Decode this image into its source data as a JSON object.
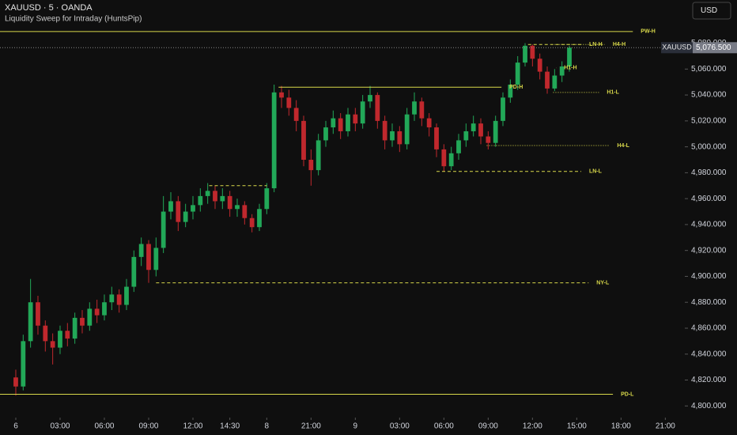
{
  "chart_data": {
    "type": "candlestick",
    "title": "XAUUSD · 5 · OANDA",
    "subtitle": "Liquidity Sweep for Intraday (HuntsPip)",
    "currency_button": "USD",
    "up_color": "#22a858",
    "down_color": "#c0282d",
    "x": [
      0,
      0.5,
      1,
      1.5,
      2,
      2.5,
      3,
      3.5,
      4,
      4.5,
      5,
      5.5,
      6,
      6.5,
      7,
      7.5,
      8,
      8.5,
      9,
      9.5,
      10,
      10.5,
      11,
      11.5,
      12,
      12.5,
      13,
      13.5,
      14,
      14.5,
      15,
      15.5,
      16,
      16.5,
      17,
      17.5,
      18,
      18.5,
      19,
      19.5,
      20,
      20.5,
      21,
      21.5,
      22,
      22.5,
      23,
      23.5,
      24,
      24.5,
      25,
      25.5,
      26,
      26.5,
      27,
      27.5,
      28,
      28.5,
      29,
      29.5,
      30,
      30.5,
      31,
      31.5,
      32,
      32.5,
      33,
      33.5,
      34,
      34.5,
      35,
      35.5,
      36,
      36.5,
      37,
      37.5
    ],
    "open": [
      4822,
      4815,
      4850,
      4880,
      4862,
      4850,
      4845,
      4858,
      4852,
      4868,
      4862,
      4875,
      4870,
      4880,
      4886,
      4878,
      4892,
      4915,
      4925,
      4905,
      4922,
      4950,
      4958,
      4942,
      4950,
      4955,
      4962,
      4966,
      4958,
      4962,
      4952,
      4955,
      4945,
      4938,
      4952,
      4968,
      5042,
      5038,
      5030,
      5020,
      4990,
      4982,
      5005,
      5015,
      5022,
      5012,
      5025,
      5018,
      5035,
      5040,
      5020,
      5005,
      5012,
      5002,
      5025,
      5035,
      5022,
      5015,
      4998,
      4985,
      4995,
      5005,
      5012,
      5018,
      5008,
      5003,
      5020,
      5038,
      5048,
      5065,
      5078,
      5068,
      5058,
      5045,
      5055,
      5062
    ],
    "high": [
      4828,
      4855,
      4898,
      4885,
      4866,
      4856,
      4862,
      4864,
      4872,
      4874,
      4880,
      4882,
      4886,
      4892,
      4890,
      4898,
      4920,
      4930,
      4928,
      4930,
      4962,
      4965,
      4962,
      4956,
      4962,
      4968,
      4972,
      4970,
      4968,
      4966,
      4960,
      4958,
      4948,
      4956,
      4972,
      5048,
      5047,
      5044,
      5036,
      5024,
      4998,
      5010,
      5020,
      5028,
      5026,
      5030,
      5030,
      5040,
      5047,
      5042,
      5024,
      5018,
      5016,
      5030,
      5042,
      5038,
      5026,
      5018,
      5002,
      5000,
      5010,
      5018,
      5024,
      5022,
      5012,
      5024,
      5042,
      5052,
      5070,
      5080,
      5079,
      5072,
      5062,
      5060,
      5066,
      5078
    ],
    "low": [
      4808,
      4812,
      4845,
      4855,
      4842,
      4832,
      4840,
      4846,
      4848,
      4856,
      4858,
      4864,
      4866,
      4874,
      4872,
      4874,
      4888,
      4908,
      4895,
      4900,
      4918,
      4944,
      4935,
      4938,
      4944,
      4950,
      4956,
      4952,
      4952,
      4946,
      4946,
      4940,
      4934,
      4935,
      4948,
      4965,
      5030,
      5024,
      5012,
      4985,
      4970,
      4978,
      5000,
      5010,
      5006,
      5008,
      5012,
      5014,
      5030,
      5014,
      4998,
      5000,
      4996,
      4998,
      5020,
      5016,
      5008,
      4992,
      4981,
      4982,
      4990,
      5000,
      5008,
      5002,
      4998,
      5000,
      5016,
      5034,
      5044,
      5062,
      5062,
      5052,
      5041,
      5043,
      5050,
      5058
    ],
    "close": [
      4815,
      4850,
      4880,
      4862,
      4850,
      4845,
      4858,
      4852,
      4868,
      4862,
      4875,
      4870,
      4880,
      4886,
      4878,
      4892,
      4915,
      4925,
      4905,
      4922,
      4950,
      4958,
      4942,
      4950,
      4955,
      4962,
      4966,
      4958,
      4962,
      4952,
      4955,
      4945,
      4938,
      4952,
      4968,
      5042,
      5038,
      5030,
      5020,
      4990,
      4982,
      5005,
      5015,
      5022,
      5012,
      5025,
      5018,
      5035,
      5040,
      5020,
      5005,
      5012,
      5002,
      5025,
      5035,
      5022,
      5015,
      4998,
      4985,
      4995,
      5005,
      5012,
      5018,
      5008,
      5003,
      5020,
      5038,
      5048,
      5065,
      5078,
      5068,
      5058,
      5045,
      5055,
      5062,
      5076.5
    ],
    "xlim": [
      -1.07,
      45.32
    ],
    "ylim": [
      4791,
      5095
    ],
    "xticks": [
      {
        "value": 0,
        "label": "6"
      },
      {
        "value": 3,
        "label": "03:00"
      },
      {
        "value": 6,
        "label": "06:00"
      },
      {
        "value": 9,
        "label": "09:00"
      },
      {
        "value": 12,
        "label": "12:00"
      },
      {
        "value": 14.5,
        "label": "14:30"
      },
      {
        "value": 17,
        "label": "8"
      },
      {
        "value": 20,
        "label": "21:00"
      },
      {
        "value": 23,
        "label": "9"
      },
      {
        "value": 26,
        "label": "03:00"
      },
      {
        "value": 29,
        "label": "06:00"
      },
      {
        "value": 32,
        "label": "09:00"
      },
      {
        "value": 35,
        "label": "12:00"
      },
      {
        "value": 38,
        "label": "15:00"
      },
      {
        "value": 41,
        "label": "18:00"
      },
      {
        "value": 44,
        "label": "21:00"
      }
    ],
    "yticks": [
      {
        "value": 4800,
        "label": "4,800.000"
      },
      {
        "value": 4820,
        "label": "4,820.000"
      },
      {
        "value": 4840,
        "label": "4,840.000"
      },
      {
        "value": 4860,
        "label": "4,860.000"
      },
      {
        "value": 4880,
        "label": "4,880.000"
      },
      {
        "value": 4900,
        "label": "4,900.000"
      },
      {
        "value": 4920,
        "label": "4,920.000"
      },
      {
        "value": 4940,
        "label": "4,940.000"
      },
      {
        "value": 4960,
        "label": "4,960.000"
      },
      {
        "value": 4980,
        "label": "4,980.000"
      },
      {
        "value": 5000,
        "label": "5,000.000"
      },
      {
        "value": 5020,
        "label": "5,020.000"
      },
      {
        "value": 5040,
        "label": "5,040.000"
      },
      {
        "value": 5060,
        "label": "5,060.000"
      },
      {
        "value": 5080,
        "label": "5,080.000"
      }
    ],
    "level_color": "#d8d84a",
    "levels": [
      {
        "label": "PW-H",
        "value": 5089,
        "from": -1.07,
        "to": 41.8,
        "style": "solid"
      },
      {
        "label": "LN-H",
        "value": 5079,
        "from": 34.7,
        "to": 38.3,
        "style": "dashed"
      },
      {
        "label": "H4-H",
        "value": 5079,
        "from": 36.5,
        "to": 39.9,
        "style": "dotted"
      },
      {
        "label": "H1-H",
        "value": 5061,
        "from": 36.6,
        "to": 36.6,
        "style": "dotted"
      },
      {
        "label": "PD-H",
        "value": 5046,
        "from": 17.8,
        "to": 32.9,
        "style": "solid"
      },
      {
        "label": "H1-L",
        "value": 5042,
        "from": 36.4,
        "to": 39.5,
        "style": "dotted"
      },
      {
        "label": "H4-L",
        "value": 5001,
        "from": 31.9,
        "to": 40.2,
        "style": "dotted"
      },
      {
        "label": "LN-L",
        "value": 4981,
        "from": 28.5,
        "to": 38.3,
        "style": "dashed"
      },
      {
        "label": null,
        "value": 4970,
        "from": 13.1,
        "to": 17.0,
        "style": "dashed"
      },
      {
        "label": "NY-L",
        "value": 4895,
        "from": 9.5,
        "to": 38.8,
        "style": "dashed"
      },
      {
        "label": "PD-L",
        "value": 4809,
        "from": -1.07,
        "to": 40.45,
        "style": "solid"
      }
    ],
    "last_price": {
      "symbol": "XAUUSD",
      "value": 5076.5,
      "label": "5,076.500"
    }
  }
}
